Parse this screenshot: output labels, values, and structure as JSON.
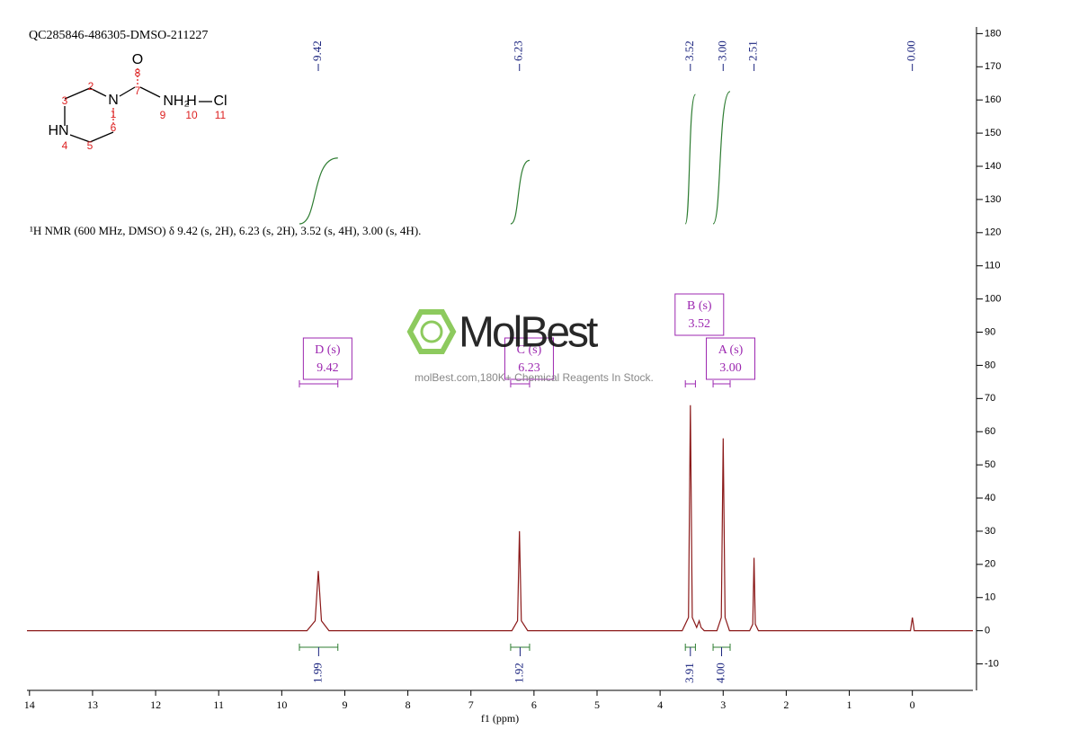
{
  "chart_data": {
    "type": "line",
    "title": "QC285846-486305-DMSO-211227",
    "subtitle": "¹H NMR (600 MHz, DMSO) δ 9.42 (s, 2H), 6.23 (s, 2H), 3.52 (s, 4H), 3.00 (s, 4H).",
    "x_label": "f1 (ppm)",
    "color": "#8b1a1a",
    "x": [
      14.04,
      9.6,
      9.47,
      9.42,
      9.37,
      9.25,
      6.35,
      6.26,
      6.23,
      6.2,
      6.1,
      3.65,
      3.55,
      3.52,
      3.49,
      3.42,
      3.38,
      3.35,
      3.3,
      3.1,
      3.03,
      3.0,
      2.97,
      2.9,
      2.58,
      2.53,
      2.51,
      2.49,
      2.44,
      0.03,
      0.0,
      -0.03,
      -0.96
    ],
    "values": [
      0,
      0,
      3,
      18,
      3,
      0,
      0,
      3,
      30,
      3,
      0,
      0,
      4,
      68,
      4,
      1,
      3,
      1,
      0,
      0,
      4,
      58,
      4,
      0,
      0,
      2,
      22,
      2,
      0,
      0,
      4,
      0,
      0
    ],
    "xlim": [
      14.04,
      -0.96
    ],
    "ylim": [
      -15,
      182
    ],
    "xticks": [
      14,
      13,
      12,
      11,
      10,
      9,
      8,
      7,
      6,
      5,
      4,
      3,
      2,
      1,
      0
    ],
    "yticks": [
      -10,
      0,
      10,
      20,
      30,
      40,
      50,
      60,
      70,
      80,
      90,
      100,
      110,
      120,
      130,
      140,
      150,
      160,
      170,
      180
    ],
    "peak_labels": [
      9.42,
      6.23,
      3.52,
      {
        "value": 3,
        "label": "3.00"
      },
      2.51,
      {
        "value": 0,
        "label": "0.00"
      }
    ],
    "multiplets": [
      {
        "name": "D (s)",
        "shift": 9.42,
        "range": [
          9.72,
          9.11
        ]
      },
      {
        "name": "C (s)",
        "shift": 6.23,
        "range": [
          6.37,
          6.07
        ]
      },
      {
        "name": "B (s)",
        "shift": 3.52,
        "range": [
          3.6,
          3.44
        ]
      },
      {
        "name": "A (s)",
        "shift": {
          "value": 3,
          "label": "3.00"
        },
        "range": [
          3.16,
          2.89
        ]
      }
    ],
    "integrals": [
      {
        "value": 1.99,
        "range": [
          9.72,
          9.11
        ]
      },
      {
        "value": 1.92,
        "range": [
          6.37,
          6.07
        ]
      },
      {
        "value": 3.91,
        "range": [
          3.6,
          3.44
        ]
      },
      {
        "value": {
          "value": 4,
          "label": "4.00"
        },
        "range": [
          3.16,
          2.89
        ]
      }
    ],
    "structure_labels": [
      "O",
      "8",
      "7",
      "N",
      "1",
      "2",
      "3",
      "HN",
      "4",
      "5",
      "6",
      "NH₂",
      "9",
      "10",
      "H",
      "11",
      "Cl"
    ],
    "watermark": {
      "brand": "MolBest",
      "tagline": "molBest.com,180K+ Chemical Reagents In Stock."
    }
  }
}
